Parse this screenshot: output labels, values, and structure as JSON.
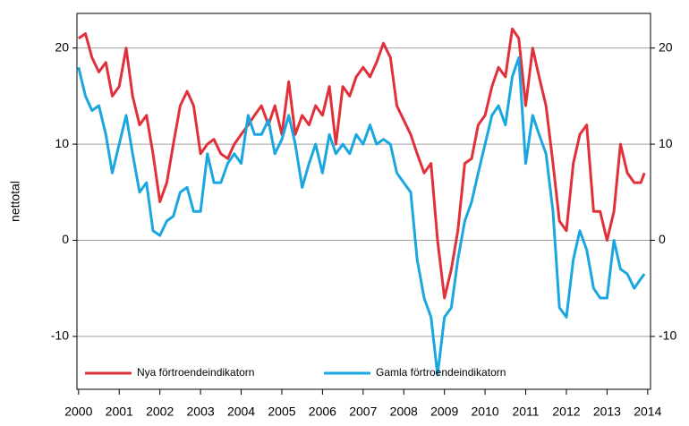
{
  "chart_data": {
    "type": "line",
    "y_label": "nettotal",
    "x": [
      2000,
      2000.17,
      2000.33,
      2000.5,
      2000.67,
      2000.83,
      2001,
      2001.17,
      2001.33,
      2001.5,
      2001.67,
      2001.83,
      2002,
      2002.17,
      2002.33,
      2002.5,
      2002.67,
      2002.83,
      2003,
      2003.17,
      2003.33,
      2003.5,
      2003.67,
      2003.83,
      2004,
      2004.17,
      2004.33,
      2004.5,
      2004.67,
      2004.83,
      2005,
      2005.17,
      2005.33,
      2005.5,
      2005.67,
      2005.83,
      2006,
      2006.17,
      2006.33,
      2006.5,
      2006.67,
      2006.83,
      2007,
      2007.17,
      2007.33,
      2007.5,
      2007.67,
      2007.83,
      2008,
      2008.17,
      2008.33,
      2008.5,
      2008.67,
      2008.83,
      2009,
      2009.17,
      2009.33,
      2009.5,
      2009.67,
      2009.83,
      2010,
      2010.17,
      2010.33,
      2010.5,
      2010.67,
      2010.83,
      2011,
      2011.17,
      2011.33,
      2011.5,
      2011.67,
      2011.83,
      2012,
      2012.17,
      2012.33,
      2012.5,
      2012.67,
      2012.83,
      2013,
      2013.17,
      2013.33,
      2013.5,
      2013.67,
      2013.83,
      2013.92
    ],
    "series": [
      {
        "name": "Nya förtroendeindikatorn",
        "color": "#e0313a",
        "values": [
          21,
          21.5,
          19,
          17.5,
          18.5,
          15,
          16,
          20,
          15,
          12,
          13,
          9,
          4,
          6,
          10,
          14,
          15.5,
          14,
          9,
          10,
          10.5,
          9,
          8.5,
          10,
          11,
          12,
          13,
          14,
          12,
          14,
          11,
          16.5,
          11,
          13,
          12,
          14,
          13,
          16,
          10,
          16,
          15,
          17,
          18,
          17,
          18.5,
          20.5,
          19,
          14,
          12.5,
          11,
          9,
          7,
          8,
          0,
          -6,
          -3,
          1,
          8,
          8.5,
          12,
          13,
          16,
          18,
          17,
          22,
          21,
          14,
          20,
          17,
          14,
          8,
          2,
          1,
          8,
          11,
          12,
          3,
          3,
          0,
          3,
          10,
          7,
          6,
          6,
          7
        ]
      },
      {
        "name": "Gamla förtroendeindikatorn",
        "color": "#1aa7e0",
        "values": [
          18,
          15,
          13.5,
          14,
          11,
          7,
          10,
          13,
          9,
          5,
          6,
          1,
          0.5,
          2,
          2.5,
          5,
          5.5,
          3,
          3,
          9,
          6,
          6,
          8,
          9,
          8,
          13,
          11,
          11,
          12.5,
          9,
          10.5,
          13,
          10,
          5.5,
          8,
          10,
          7,
          11,
          9,
          10,
          9,
          11,
          10,
          12,
          10,
          10.5,
          10,
          7,
          6,
          5,
          -2,
          -6,
          -8,
          -14,
          -8,
          -7,
          -2,
          2,
          4,
          7,
          10,
          13,
          14,
          12,
          17,
          19,
          8,
          13,
          11,
          9,
          3,
          -7,
          -8,
          -2,
          1,
          -1,
          -5,
          -6,
          -6,
          0,
          -3,
          -3.5,
          -5,
          -4,
          -3.5
        ]
      }
    ],
    "xlim": [
      1999.96,
      2014.07
    ],
    "xticks": [
      2000,
      2001,
      2002,
      2003,
      2004,
      2005,
      2006,
      2007,
      2008,
      2009,
      2010,
      2011,
      2012,
      2013,
      2014
    ],
    "ylim": [
      -15.5,
      23.6
    ],
    "yticks": [
      -10,
      0,
      10,
      20
    ],
    "grid": true,
    "legend": "bottom-left"
  }
}
